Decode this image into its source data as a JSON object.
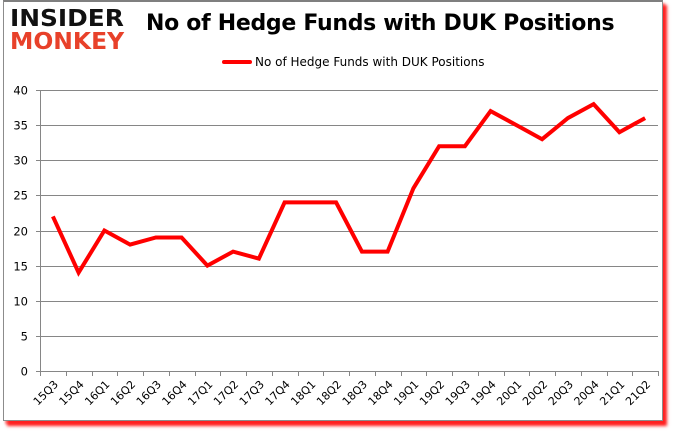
{
  "logo": {
    "line1": "INSIDER",
    "line2": "MONKEY"
  },
  "chart_data": {
    "type": "line",
    "title": "No of Hedge Funds with DUK Positions",
    "xlabel": "",
    "ylabel": "",
    "categories": [
      "15Q3",
      "15Q4",
      "16Q1",
      "16Q2",
      "16Q3",
      "16Q4",
      "17Q1",
      "17Q2",
      "17Q3",
      "17Q4",
      "18Q1",
      "18Q2",
      "18Q3",
      "18Q4",
      "19Q1",
      "19Q2",
      "19Q3",
      "19Q4",
      "20Q1",
      "20Q2",
      "20Q3",
      "20Q4",
      "21Q1",
      "21Q2"
    ],
    "series": [
      {
        "name": "No of Hedge Funds with DUK Positions",
        "color": "#ff0000",
        "values": [
          22,
          14,
          20,
          18,
          19,
          19,
          15,
          17,
          16,
          24,
          24,
          24,
          17,
          17,
          26,
          32,
          32,
          37,
          35,
          33,
          36,
          38,
          34,
          36
        ]
      }
    ],
    "ylim": [
      0,
      40
    ],
    "yticks": [
      0,
      5,
      10,
      15,
      20,
      25,
      30,
      35,
      40
    ],
    "grid": true,
    "legend_position": "top"
  }
}
